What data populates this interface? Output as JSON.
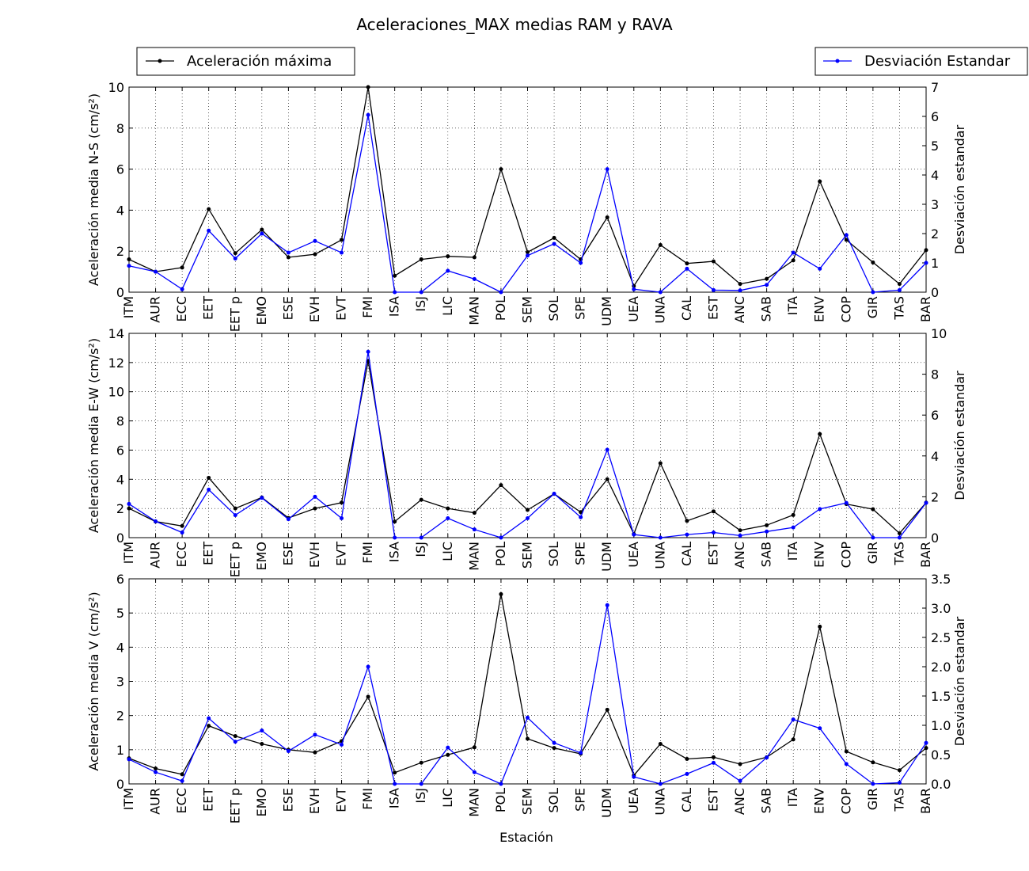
{
  "title": "Aceleraciones_MAX medias RAM y RAVA",
  "legend": {
    "left_label": "Aceleración máxima",
    "right_label": "Desviación Estandar",
    "left_color": "#000000",
    "right_color": "#0000ff"
  },
  "xlabel": "Estación",
  "chart_data": [
    {
      "type": "line",
      "categories": [
        "ITM",
        "AUR",
        "ECC",
        "EET",
        "EET p",
        "EMO",
        "ESE",
        "EVH",
        "EVT",
        "FMI",
        "ISA",
        "ISJ",
        "LIC",
        "MAN",
        "POL",
        "SEM",
        "SOL",
        "SPE",
        "UDM",
        "UEA",
        "UNA",
        "CAL",
        "EST",
        "ANC",
        "SAB",
        "ITA",
        "ENV",
        "COP",
        "GIR",
        "TAS",
        "BAR"
      ],
      "ylabel": "Aceleración media N-S (cm/s²)",
      "ylim": [
        0,
        10
      ],
      "yticks": [
        0,
        2,
        4,
        6,
        8,
        10
      ],
      "y2label": "Desviación estandar",
      "y2lim": [
        0,
        7
      ],
      "y2ticks": [
        0,
        1,
        2,
        3,
        4,
        5,
        6,
        7
      ],
      "grid": true,
      "series": [
        {
          "name": "Aceleración máxima",
          "axis": "left",
          "color": "#000000",
          "values": [
            1.6,
            1.0,
            1.2,
            4.05,
            1.9,
            3.05,
            1.7,
            1.85,
            2.55,
            10.0,
            0.8,
            1.6,
            1.75,
            1.7,
            6.0,
            1.95,
            2.65,
            1.6,
            3.65,
            0.3,
            2.3,
            1.4,
            1.5,
            0.4,
            0.65,
            1.55,
            5.4,
            2.55,
            1.45,
            0.4,
            2.05
          ]
        },
        {
          "name": "Desviación Estandar",
          "axis": "right",
          "color": "#0000ff",
          "values": [
            0.9,
            0.7,
            0.1,
            2.1,
            1.15,
            2.0,
            1.35,
            1.75,
            1.35,
            6.05,
            0.0,
            0.0,
            0.73,
            0.45,
            0.0,
            1.25,
            1.65,
            1.0,
            4.2,
            0.1,
            0.0,
            0.8,
            0.07,
            0.06,
            0.25,
            1.35,
            0.8,
            1.95,
            0.0,
            0.07,
            1.0
          ]
        }
      ]
    },
    {
      "type": "line",
      "categories": [
        "ITM",
        "AUR",
        "ECC",
        "EET",
        "EET p",
        "EMO",
        "ESE",
        "EVH",
        "EVT",
        "FMI",
        "ISA",
        "ISJ",
        "LIC",
        "MAN",
        "POL",
        "SEM",
        "SOL",
        "SPE",
        "UDM",
        "UEA",
        "UNA",
        "CAL",
        "EST",
        "ANC",
        "SAB",
        "ITA",
        "ENV",
        "COP",
        "GIR",
        "TAS",
        "BAR"
      ],
      "ylabel": "Aceleración media E-W (cm/s²)",
      "ylim": [
        0,
        14
      ],
      "yticks": [
        0,
        2,
        4,
        6,
        8,
        10,
        12,
        14
      ],
      "y2label": "Desviación estandar",
      "y2lim": [
        0,
        10
      ],
      "y2ticks": [
        0,
        2,
        4,
        6,
        8,
        10
      ],
      "grid": true,
      "series": [
        {
          "name": "Aceleración máxima",
          "axis": "left",
          "color": "#000000",
          "values": [
            2.0,
            1.1,
            0.8,
            4.1,
            2.0,
            2.75,
            1.35,
            2.0,
            2.4,
            12.1,
            1.1,
            2.6,
            2.0,
            1.7,
            3.6,
            1.9,
            3.0,
            1.75,
            4.0,
            0.25,
            5.1,
            1.15,
            1.8,
            0.5,
            0.85,
            1.55,
            7.1,
            2.3,
            1.95,
            0.3,
            2.4
          ]
        },
        {
          "name": "Desviación Estandar",
          "axis": "right",
          "color": "#0000ff",
          "values": [
            1.65,
            0.8,
            0.25,
            2.35,
            1.1,
            1.95,
            0.9,
            2.0,
            0.95,
            9.1,
            0.0,
            0.0,
            0.95,
            0.4,
            0.0,
            0.95,
            2.15,
            1.0,
            4.3,
            0.15,
            0.0,
            0.15,
            0.25,
            0.1,
            0.3,
            0.5,
            1.4,
            1.7,
            0.0,
            0.0,
            1.7
          ]
        }
      ]
    },
    {
      "type": "line",
      "categories": [
        "ITM",
        "AUR",
        "ECC",
        "EET",
        "EET p",
        "EMO",
        "ESE",
        "EVH",
        "EVT",
        "FMI",
        "ISA",
        "ISJ",
        "LIC",
        "MAN",
        "POL",
        "SEM",
        "SOL",
        "SPE",
        "UDM",
        "UEA",
        "UNA",
        "CAL",
        "EST",
        "ANC",
        "SAB",
        "ITA",
        "ENV",
        "COP",
        "GIR",
        "TAS",
        "BAR"
      ],
      "ylabel": "Aceleración media V (cm/s²)",
      "ylim": [
        0,
        6
      ],
      "yticks": [
        0,
        1,
        2,
        3,
        4,
        5,
        6
      ],
      "y2label": "Desviación estandar",
      "y2lim": [
        0,
        3.5
      ],
      "y2ticks": [
        0.0,
        0.5,
        1.0,
        1.5,
        2.0,
        2.5,
        3.0,
        3.5
      ],
      "grid": true,
      "series": [
        {
          "name": "Aceleración máxima",
          "axis": "left",
          "color": "#000000",
          "values": [
            0.75,
            0.45,
            0.28,
            1.7,
            1.4,
            1.17,
            1.0,
            0.92,
            1.25,
            2.55,
            0.33,
            0.62,
            0.85,
            1.07,
            5.55,
            1.32,
            1.05,
            0.88,
            2.17,
            0.25,
            1.17,
            0.73,
            0.78,
            0.58,
            0.78,
            1.3,
            4.6,
            0.95,
            0.63,
            0.4,
            1.05
          ]
        },
        {
          "name": "Desviación Estandar",
          "axis": "right",
          "color": "#0000ff",
          "values": [
            0.42,
            0.2,
            0.05,
            1.12,
            0.72,
            0.91,
            0.56,
            0.84,
            0.67,
            2.0,
            0.0,
            0.0,
            0.62,
            0.2,
            0.0,
            1.13,
            0.7,
            0.53,
            3.05,
            0.12,
            0.0,
            0.17,
            0.36,
            0.05,
            0.45,
            1.1,
            0.95,
            0.34,
            0.0,
            0.02,
            0.7
          ]
        }
      ]
    }
  ]
}
